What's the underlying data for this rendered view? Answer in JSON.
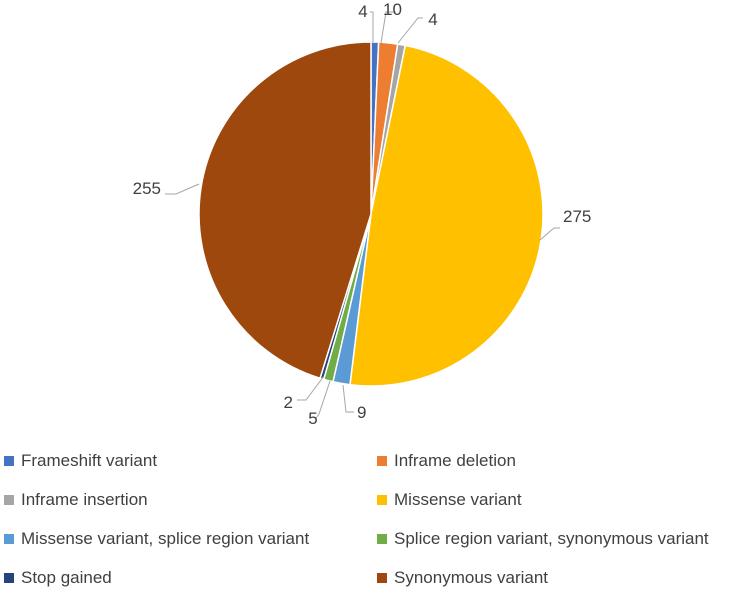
{
  "chart_data": {
    "type": "pie",
    "categories": [
      "Frameshift variant",
      "Inframe deletion",
      "Inframe insertion",
      "Missense variant",
      "Missense variant, splice region variant",
      "Splice region variant, synonymous variant",
      "Stop gained",
      "Synonymous variant"
    ],
    "values": [
      4,
      10,
      4,
      275,
      9,
      5,
      2,
      255
    ],
    "data_labels": [
      "4",
      "10",
      "4",
      "275",
      "9",
      "5",
      "2",
      "255"
    ],
    "colors": [
      "#4472C4",
      "#ED7D31",
      "#A5A5A5",
      "#FFC000",
      "#5B9BD5",
      "#70AD47",
      "#264478",
      "#9E480E"
    ],
    "legend_position": "bottom",
    "title": ""
  }
}
